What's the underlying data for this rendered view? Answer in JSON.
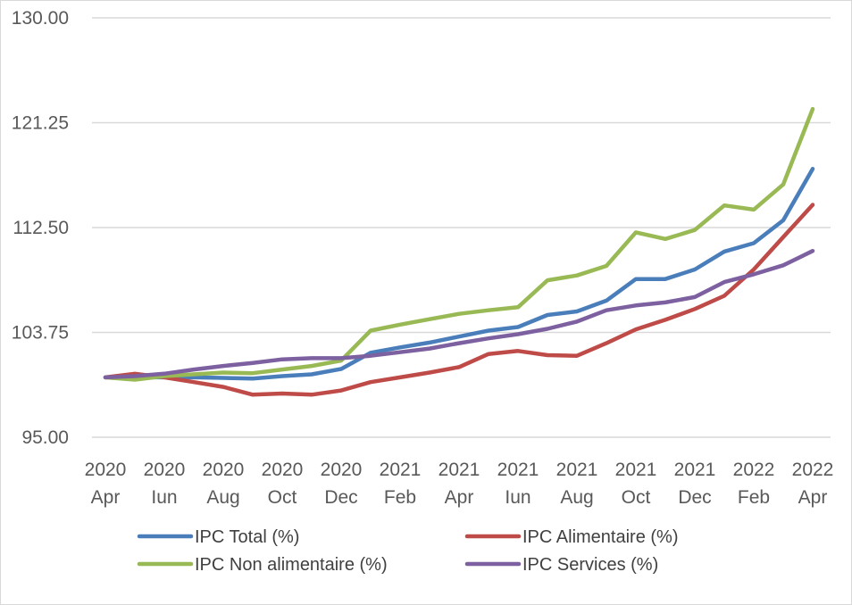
{
  "chart_data": {
    "type": "line",
    "title": "",
    "xlabel": "",
    "ylabel": "",
    "ylim": [
      95,
      130
    ],
    "yticks": [
      "95.00",
      "103.75",
      "112.50",
      "121.25",
      "130.00"
    ],
    "x_tick_labels": [
      {
        "top": "2020",
        "bottom": "Apr"
      },
      {
        "top": "2020",
        "bottom": "Iun"
      },
      {
        "top": "2020",
        "bottom": "Aug"
      },
      {
        "top": "2020",
        "bottom": "Oct"
      },
      {
        "top": "2020",
        "bottom": "Dec"
      },
      {
        "top": "2021",
        "bottom": "Feb"
      },
      {
        "top": "2021",
        "bottom": "Apr"
      },
      {
        "top": "2021",
        "bottom": "Iun"
      },
      {
        "top": "2021",
        "bottom": "Aug"
      },
      {
        "top": "2021",
        "bottom": "Oct"
      },
      {
        "top": "2021",
        "bottom": "Dec"
      },
      {
        "top": "2022",
        "bottom": "Feb"
      },
      {
        "top": "2022",
        "bottom": "Apr"
      }
    ],
    "categories": [
      "2020 Apr",
      "2020 May",
      "2020 Iun",
      "2020 Jul",
      "2020 Aug",
      "2020 Sep",
      "2020 Oct",
      "2020 Nov",
      "2020 Dec",
      "2021 Jan",
      "2021 Feb",
      "2021 Mar",
      "2021 Apr",
      "2021 May",
      "2021 Iun",
      "2021 Jul",
      "2021 Aug",
      "2021 Sep",
      "2021 Oct",
      "2021 Nov",
      "2021 Dec",
      "2022 Jan",
      "2022 Feb",
      "2022 Mar",
      "2022 Apr"
    ],
    "grid": true,
    "legend_position": "bottom",
    "series": [
      {
        "name": "IPC Total (%)",
        "color": "#4a7ebb",
        "values": [
          100.0,
          100.0,
          100.0,
          100.0,
          99.95,
          99.9,
          100.1,
          100.25,
          100.7,
          102.05,
          102.5,
          102.9,
          103.4,
          103.9,
          104.2,
          105.2,
          105.5,
          106.4,
          108.2,
          108.2,
          109.0,
          110.5,
          111.2,
          113.1,
          117.4
        ]
      },
      {
        "name": "IPC Alimentaire (%)",
        "color": "#be4b48",
        "values": [
          100.0,
          100.3,
          100.0,
          99.6,
          99.2,
          98.55,
          98.65,
          98.55,
          98.9,
          99.6,
          100.0,
          100.4,
          100.85,
          101.95,
          102.2,
          101.85,
          101.8,
          102.85,
          104.0,
          104.8,
          105.7,
          106.8,
          109.0,
          111.7,
          114.4
        ]
      },
      {
        "name": "IPC Non alimentaire (%)",
        "color": "#98b954",
        "values": [
          100.0,
          99.8,
          100.1,
          100.25,
          100.4,
          100.35,
          100.65,
          100.95,
          101.4,
          103.9,
          104.4,
          104.85,
          105.3,
          105.6,
          105.85,
          108.1,
          108.5,
          109.3,
          112.1,
          111.55,
          112.3,
          114.35,
          114.0,
          116.1,
          122.4
        ]
      },
      {
        "name": "IPC Services (%)",
        "color": "#7d60a0",
        "values": [
          100.0,
          100.1,
          100.3,
          100.65,
          100.95,
          101.2,
          101.5,
          101.6,
          101.6,
          101.8,
          102.1,
          102.4,
          102.85,
          103.25,
          103.6,
          104.05,
          104.65,
          105.6,
          106.0,
          106.25,
          106.7,
          107.95,
          108.6,
          109.35,
          110.55
        ]
      }
    ]
  }
}
